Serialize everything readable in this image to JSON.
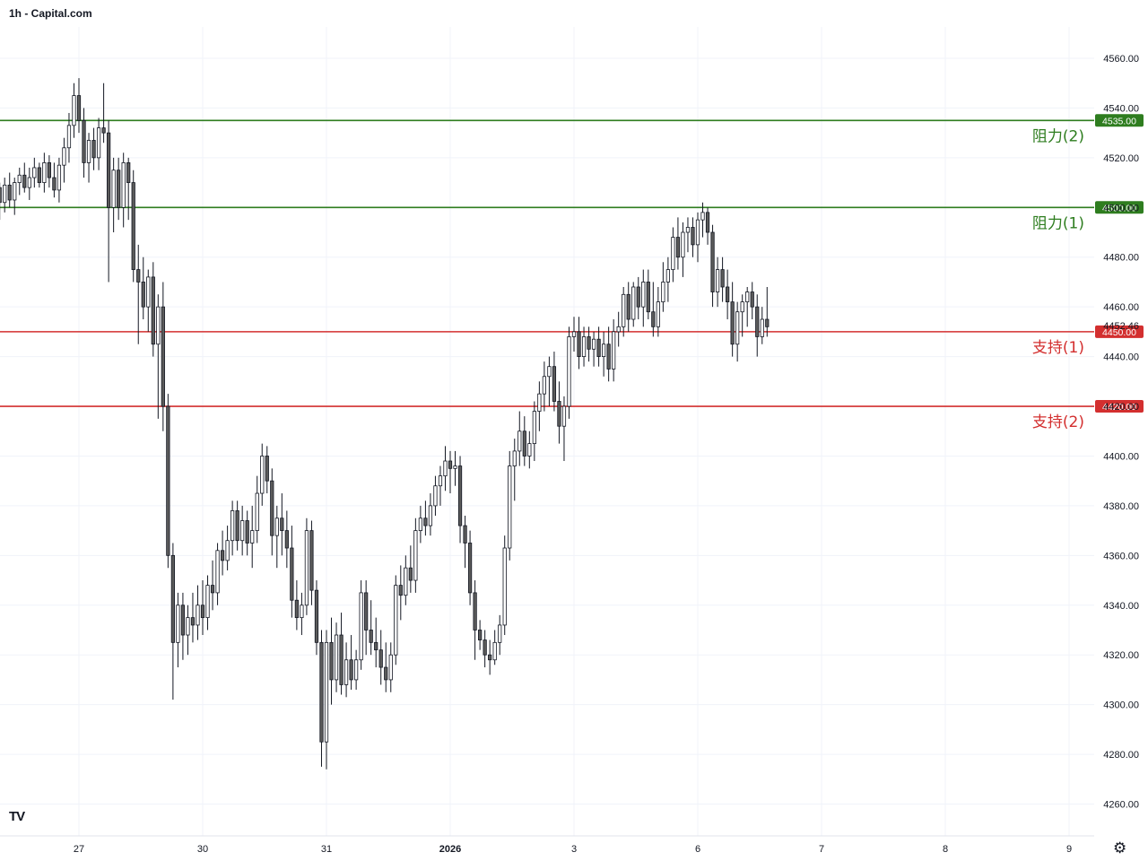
{
  "header": {
    "title": "1h - Capital.com"
  },
  "branding": {
    "logo_text": "TV"
  },
  "settings": {
    "icon": "gear-icon"
  },
  "colors": {
    "up_fill": "#ffffff",
    "down_fill": "#5b5b5b",
    "wick": "#131722",
    "resistance": "#2e7d1f",
    "support": "#d32f2f",
    "grid": "#f0f3fa",
    "axis_text": "#131722"
  },
  "chart_data": {
    "type": "candlestick",
    "title": "1h - Capital.com",
    "ylim": [
      4250,
      4570
    ],
    "y_ticks": [
      "4560.00",
      "4540.00",
      "4520.00",
      "4500.00",
      "4480.00",
      "4460.00",
      "4440.00",
      "4420.00",
      "4400.00",
      "4380.00",
      "4360.00",
      "4340.00",
      "4320.00",
      "4300.00",
      "4280.00",
      "4260.00"
    ],
    "x_ticks": [
      {
        "label": "27",
        "bar": 0,
        "bold": false
      },
      {
        "label": "30",
        "bar": 25,
        "bold": false
      },
      {
        "label": "31",
        "bar": 50,
        "bold": false
      },
      {
        "label": "2026",
        "bar": 75,
        "bold": true
      },
      {
        "label": "3",
        "bar": 100,
        "bold": false
      },
      {
        "label": "6",
        "bar": 125,
        "bold": false
      },
      {
        "label": "7",
        "bar": 150,
        "bold": false
      },
      {
        "label": "8",
        "bar": 175,
        "bold": false
      },
      {
        "label": "9",
        "bar": 200,
        "bold": false
      }
    ],
    "bar_range": [
      -16,
      210
    ],
    "last_price": "4452.46",
    "levels": [
      {
        "value": 4535,
        "price_label": "4535.00",
        "text": "阻力(2)",
        "kind": "resistance"
      },
      {
        "value": 4500,
        "price_label": "4500.00",
        "text": "阻力(1)",
        "kind": "resistance"
      },
      {
        "value": 4450,
        "price_label": "4450.00",
        "text": "支持(1)",
        "kind": "support"
      },
      {
        "value": 4420,
        "price_label": "4420.00",
        "text": "支持(2)",
        "kind": "support"
      }
    ],
    "candles": [
      [
        4508,
        4510,
        4495,
        4502
      ],
      [
        4502,
        4512,
        4498,
        4509
      ],
      [
        4509,
        4514,
        4500,
        4503
      ],
      [
        4503,
        4512,
        4497,
        4510
      ],
      [
        4510,
        4516,
        4505,
        4513
      ],
      [
        4513,
        4518,
        4506,
        4508
      ],
      [
        4508,
        4516,
        4503,
        4512
      ],
      [
        4512,
        4520,
        4508,
        4516
      ],
      [
        4516,
        4518,
        4508,
        4510
      ],
      [
        4510,
        4522,
        4506,
        4518
      ],
      [
        4518,
        4521,
        4508,
        4512
      ],
      [
        4512,
        4518,
        4504,
        4507
      ],
      [
        4507,
        4520,
        4502,
        4517
      ],
      [
        4517,
        4528,
        4510,
        4524
      ],
      [
        4524,
        4538,
        4518,
        4533
      ],
      [
        4533,
        4550,
        4528,
        4545
      ],
      [
        4545,
        4552,
        4530,
        4535
      ],
      [
        4535,
        4540,
        4512,
        4518
      ],
      [
        4518,
        4530,
        4510,
        4527
      ],
      [
        4527,
        4532,
        4515,
        4520
      ],
      [
        4520,
        4536,
        4515,
        4532
      ],
      [
        4532,
        4550,
        4526,
        4530
      ],
      [
        4530,
        4535,
        4470,
        4500
      ],
      [
        4500,
        4520,
        4490,
        4515
      ],
      [
        4515,
        4520,
        4495,
        4500
      ],
      [
        4500,
        4522,
        4492,
        4518
      ],
      [
        4518,
        4520,
        4495,
        4510
      ],
      [
        4510,
        4515,
        4470,
        4475
      ],
      [
        4475,
        4485,
        4445,
        4470
      ],
      [
        4470,
        4480,
        4455,
        4460
      ],
      [
        4460,
        4475,
        4450,
        4472
      ],
      [
        4472,
        4478,
        4440,
        4445
      ],
      [
        4445,
        4465,
        4415,
        4460
      ],
      [
        4460,
        4470,
        4410,
        4420
      ],
      [
        4420,
        4425,
        4355,
        4360
      ],
      [
        4360,
        4365,
        4302,
        4325
      ],
      [
        4325,
        4345,
        4315,
        4340
      ],
      [
        4340,
        4345,
        4318,
        4328
      ],
      [
        4328,
        4340,
        4320,
        4335
      ],
      [
        4335,
        4345,
        4325,
        4332
      ],
      [
        4332,
        4348,
        4326,
        4340
      ],
      [
        4340,
        4350,
        4328,
        4335
      ],
      [
        4335,
        4352,
        4330,
        4348
      ],
      [
        4348,
        4358,
        4338,
        4345
      ],
      [
        4345,
        4365,
        4340,
        4362
      ],
      [
        4362,
        4370,
        4352,
        4358
      ],
      [
        4358,
        4372,
        4354,
        4366
      ],
      [
        4366,
        4382,
        4360,
        4378
      ],
      [
        4378,
        4382,
        4362,
        4366
      ],
      [
        4366,
        4380,
        4360,
        4374
      ],
      [
        4374,
        4378,
        4360,
        4365
      ],
      [
        4365,
        4380,
        4355,
        4370
      ],
      [
        4370,
        4392,
        4365,
        4385
      ],
      [
        4385,
        4405,
        4380,
        4400
      ],
      [
        4400,
        4404,
        4385,
        4390
      ],
      [
        4390,
        4395,
        4360,
        4368
      ],
      [
        4368,
        4380,
        4355,
        4375
      ],
      [
        4375,
        4385,
        4360,
        4370
      ],
      [
        4370,
        4378,
        4355,
        4363
      ],
      [
        4363,
        4372,
        4335,
        4342
      ],
      [
        4342,
        4350,
        4330,
        4335
      ],
      [
        4335,
        4345,
        4328,
        4340
      ],
      [
        4340,
        4375,
        4336,
        4370
      ],
      [
        4370,
        4374,
        4340,
        4346
      ],
      [
        4346,
        4350,
        4320,
        4325
      ],
      [
        4325,
        4330,
        4275,
        4285
      ],
      [
        4285,
        4330,
        4274,
        4325
      ],
      [
        4325,
        4335,
        4300,
        4310
      ],
      [
        4310,
        4333,
        4305,
        4328
      ],
      [
        4328,
        4337,
        4304,
        4308
      ],
      [
        4308,
        4325,
        4303,
        4318
      ],
      [
        4318,
        4328,
        4306,
        4310
      ],
      [
        4310,
        4322,
        4306,
        4318
      ],
      [
        4318,
        4350,
        4314,
        4345
      ],
      [
        4345,
        4350,
        4320,
        4330
      ],
      [
        4330,
        4342,
        4320,
        4325
      ],
      [
        4325,
        4335,
        4315,
        4322
      ],
      [
        4322,
        4330,
        4308,
        4315
      ],
      [
        4315,
        4325,
        4305,
        4310
      ],
      [
        4310,
        4325,
        4305,
        4320
      ],
      [
        4320,
        4352,
        4316,
        4348
      ],
      [
        4348,
        4356,
        4334,
        4344
      ],
      [
        4344,
        4360,
        4340,
        4355
      ],
      [
        4355,
        4364,
        4345,
        4350
      ],
      [
        4350,
        4375,
        4345,
        4370
      ],
      [
        4370,
        4380,
        4365,
        4375
      ],
      [
        4375,
        4382,
        4368,
        4372
      ],
      [
        4372,
        4385,
        4368,
        4380
      ],
      [
        4380,
        4392,
        4376,
        4388
      ],
      [
        4388,
        4396,
        4380,
        4392
      ],
      [
        4392,
        4404,
        4386,
        4398
      ],
      [
        4398,
        4402,
        4385,
        4395
      ],
      [
        4395,
        4402,
        4388,
        4396
      ],
      [
        4396,
        4400,
        4365,
        4372
      ],
      [
        4372,
        4376,
        4355,
        4365
      ],
      [
        4365,
        4370,
        4340,
        4345
      ],
      [
        4345,
        4350,
        4318,
        4330
      ],
      [
        4330,
        4334,
        4322,
        4326
      ],
      [
        4326,
        4330,
        4315,
        4320
      ],
      [
        4320,
        4326,
        4312,
        4318
      ],
      [
        4318,
        4330,
        4316,
        4325
      ],
      [
        4325,
        4336,
        4320,
        4332
      ],
      [
        4332,
        4368,
        4328,
        4363
      ],
      [
        4363,
        4402,
        4358,
        4396
      ],
      [
        4396,
        4407,
        4382,
        4402
      ],
      [
        4402,
        4418,
        4396,
        4410
      ],
      [
        4410,
        4416,
        4396,
        4400
      ],
      [
        4400,
        4410,
        4395,
        4405
      ],
      [
        4405,
        4422,
        4398,
        4418
      ],
      [
        4418,
        4430,
        4410,
        4425
      ],
      [
        4425,
        4438,
        4418,
        4432
      ],
      [
        4432,
        4440,
        4420,
        4436
      ],
      [
        4436,
        4442,
        4418,
        4422
      ],
      [
        4422,
        4430,
        4405,
        4412
      ],
      [
        4412,
        4424,
        4398,
        4420
      ],
      [
        4420,
        4452,
        4415,
        4448
      ],
      [
        4448,
        4456,
        4442,
        4450
      ],
      [
        4450,
        4456,
        4435,
        4440
      ],
      [
        4440,
        4452,
        4436,
        4448
      ],
      [
        4448,
        4452,
        4438,
        4443
      ],
      [
        4443,
        4450,
        4436,
        4447
      ],
      [
        4447,
        4452,
        4436,
        4440
      ],
      [
        4440,
        4450,
        4432,
        4445
      ],
      [
        4445,
        4452,
        4430,
        4435
      ],
      [
        4435,
        4455,
        4430,
        4450
      ],
      [
        4450,
        4458,
        4444,
        4452
      ],
      [
        4452,
        4468,
        4448,
        4465
      ],
      [
        4465,
        4470,
        4450,
        4455
      ],
      [
        4455,
        4470,
        4452,
        4468
      ],
      [
        4468,
        4472,
        4455,
        4460
      ],
      [
        4460,
        4475,
        4452,
        4470
      ],
      [
        4470,
        4475,
        4455,
        4458
      ],
      [
        4458,
        4470,
        4448,
        4452
      ],
      [
        4452,
        4468,
        4448,
        4462
      ],
      [
        4462,
        4478,
        4458,
        4470
      ],
      [
        4470,
        4480,
        4462,
        4475
      ],
      [
        4475,
        4492,
        4470,
        4488
      ],
      [
        4488,
        4496,
        4475,
        4480
      ],
      [
        4480,
        4494,
        4472,
        4490
      ],
      [
        4490,
        4496,
        4482,
        4492
      ],
      [
        4492,
        4496,
        4480,
        4485
      ],
      [
        4485,
        4498,
        4478,
        4495
      ],
      [
        4495,
        4502,
        4488,
        4498
      ],
      [
        4498,
        4500,
        4485,
        4490
      ],
      [
        4490,
        4493,
        4460,
        4466
      ],
      [
        4466,
        4480,
        4460,
        4475
      ],
      [
        4475,
        4480,
        4462,
        4468
      ],
      [
        4468,
        4475,
        4455,
        4462
      ],
      [
        4462,
        4470,
        4440,
        4445
      ],
      [
        4445,
        4462,
        4438,
        4458
      ],
      [
        4458,
        4465,
        4448,
        4462
      ],
      [
        4462,
        4468,
        4452,
        4466
      ],
      [
        4466,
        4470,
        4455,
        4460
      ],
      [
        4460,
        4465,
        4440,
        4448
      ],
      [
        4448,
        4460,
        4445,
        4455
      ],
      [
        4455,
        4468,
        4448,
        4452
      ]
    ]
  }
}
